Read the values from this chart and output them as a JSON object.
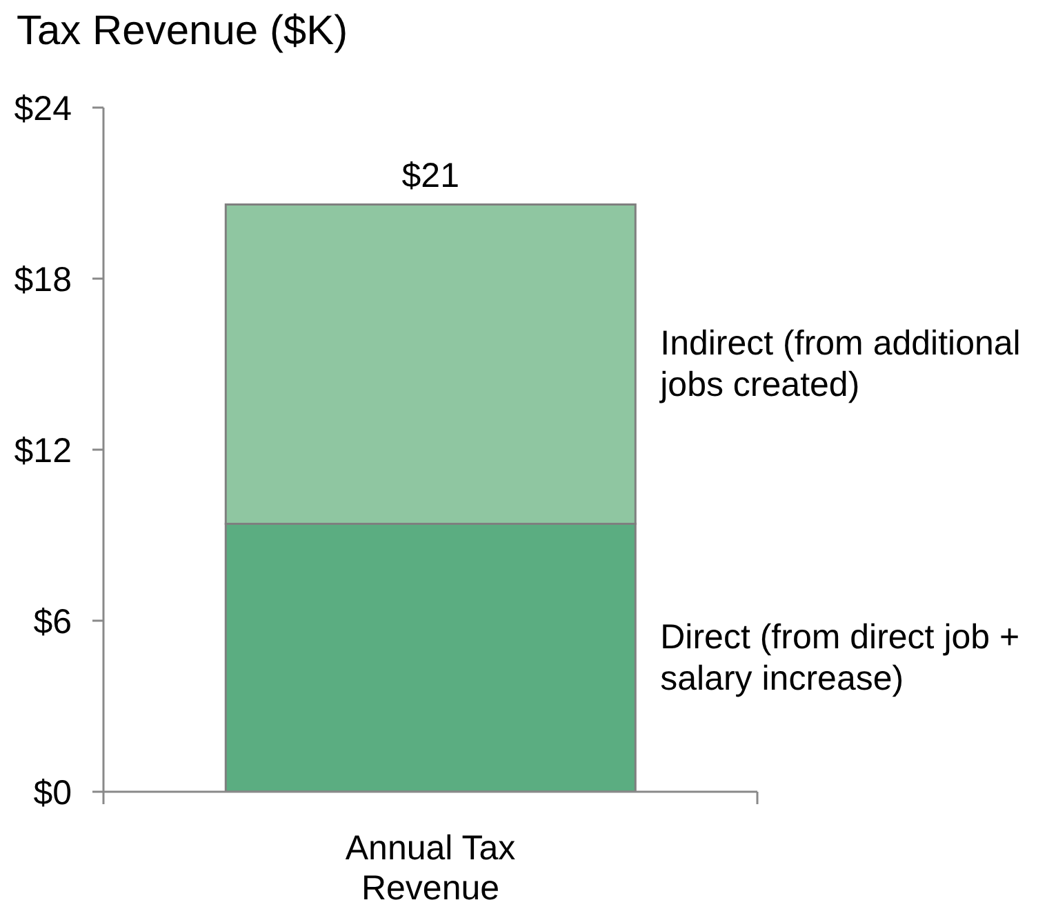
{
  "chart_data": {
    "type": "bar",
    "title": "Tax Revenue ($K)",
    "categories": [
      "Annual Tax Revenue"
    ],
    "series": [
      {
        "name": "Direct (from direct job + salary increase)",
        "color": "#5bad81",
        "values": [
          9.4
        ]
      },
      {
        "name": "Indirect (from additional jobs created)",
        "color": "#8fc6a1",
        "values": [
          11.2
        ]
      }
    ],
    "stacked": true,
    "ylim": [
      0,
      24
    ],
    "yticks": [
      {
        "value": 0,
        "label": "$0"
      },
      {
        "value": 6,
        "label": "$6"
      },
      {
        "value": 12,
        "label": "$12"
      },
      {
        "value": 18,
        "label": "$18"
      },
      {
        "value": 24,
        "label": "$24"
      }
    ],
    "totals": [
      "$21"
    ]
  }
}
